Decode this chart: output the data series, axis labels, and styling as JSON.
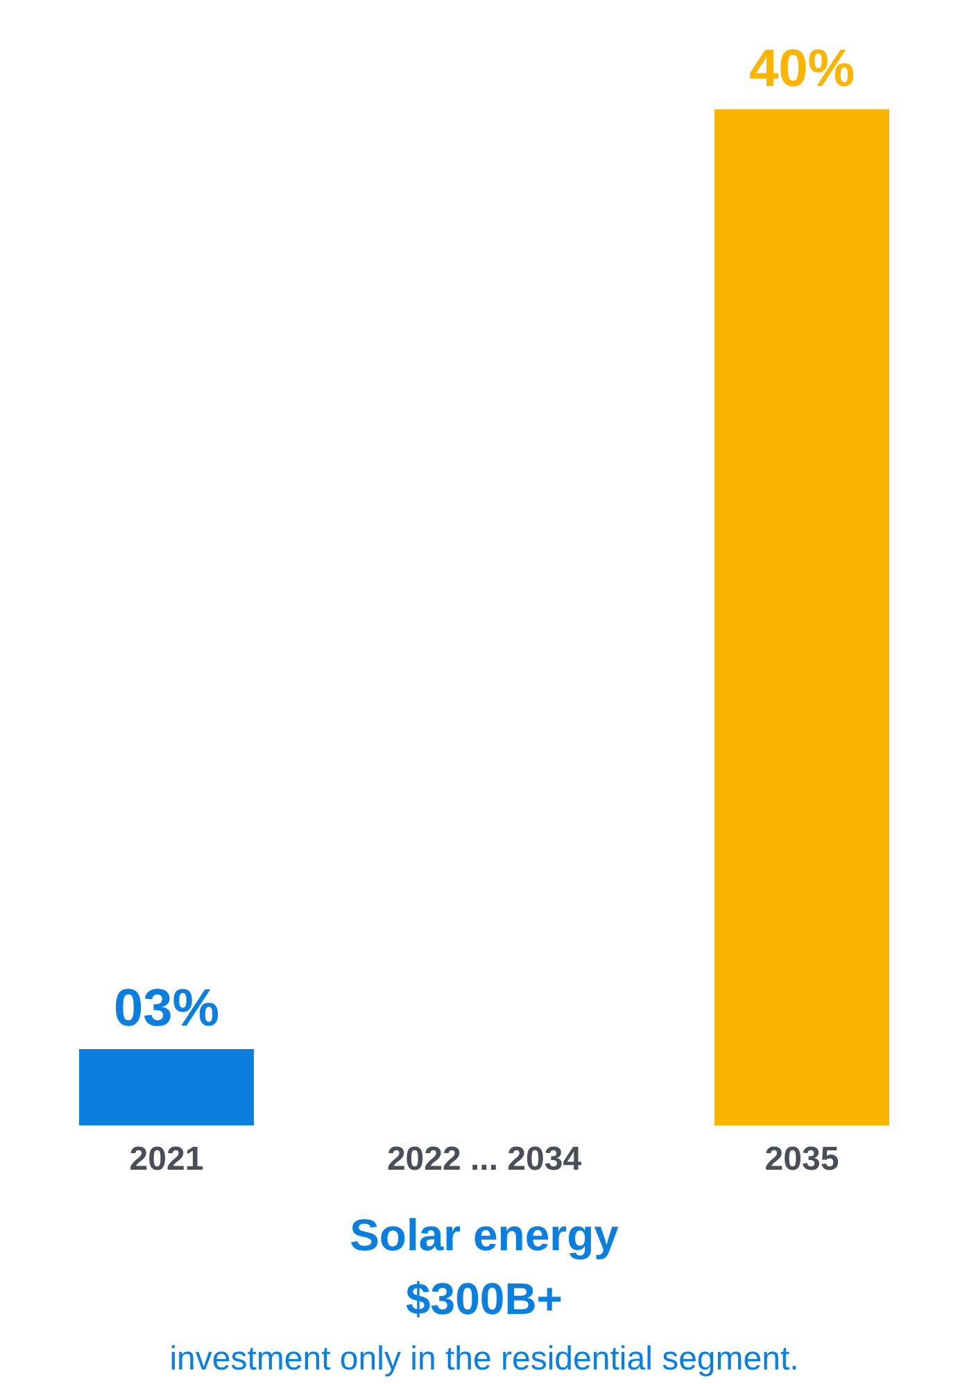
{
  "chart_data": {
    "type": "bar",
    "categories": [
      "2021",
      "2022 ... 2034",
      "2035"
    ],
    "values": [
      3,
      null,
      40
    ],
    "colors": [
      "#0a7fe0",
      null,
      "#fbb500"
    ],
    "value_labels": [
      "03%",
      null,
      "40%"
    ],
    "xlabel": "Solar energy",
    "annotations": [
      "$300B+",
      "investment only in the residential segment."
    ],
    "grid": false
  }
}
